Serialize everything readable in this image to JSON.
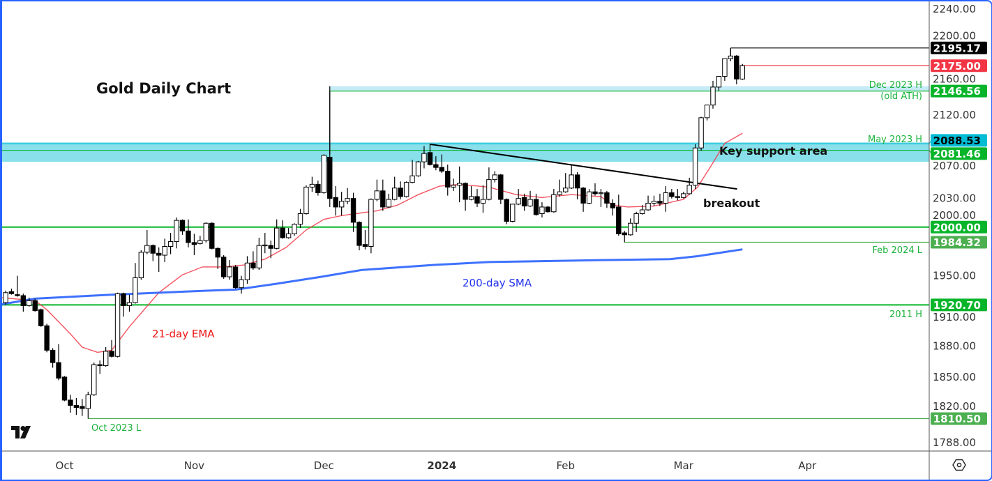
{
  "chart_data": {
    "type": "candlestick",
    "title": "Gold Daily Chart",
    "y_scale": "log",
    "ylim": [
      1788,
      2240
    ],
    "xlim_bars": [
      -1,
      156.7
    ],
    "grid": false,
    "y_ticks": [
      "2240.00",
      "2200.00",
      "2160.00",
      "2120.00",
      "2070.00",
      "2030.00",
      "2000.00",
      "1950.00",
      "1910.00",
      "1880.00",
      "1850.00",
      "1820.00",
      "1788.00"
    ],
    "x_ticks": [
      {
        "label": "Oct",
        "bar": 10
      },
      {
        "label": "Nov",
        "bar": 32
      },
      {
        "label": "Dec",
        "bar": 54
      },
      {
        "label": "2024",
        "bar": 74,
        "bold": true
      },
      {
        "label": "Feb",
        "bar": 95
      },
      {
        "label": "Mar",
        "bar": 115
      },
      {
        "label": "Apr",
        "bar": 136
      }
    ],
    "candles_ohlc": [
      [
        1923,
        1935,
        1921,
        1933
      ],
      [
        1934,
        1937,
        1931,
        1932
      ],
      [
        1931,
        1950,
        1929,
        1930
      ],
      [
        1930,
        1932,
        1914,
        1920
      ],
      [
        1920,
        1928,
        1919,
        1925
      ],
      [
        1925,
        1927,
        1914,
        1915
      ],
      [
        1916,
        1917,
        1899,
        1900
      ],
      [
        1900,
        1902,
        1874,
        1876
      ],
      [
        1876,
        1878,
        1859,
        1864
      ],
      [
        1864,
        1882,
        1847,
        1849
      ],
      [
        1850,
        1851,
        1827,
        1828
      ],
      [
        1828,
        1833,
        1816,
        1823
      ],
      [
        1823,
        1830,
        1814,
        1821
      ],
      [
        1822,
        1829,
        1813,
        1820
      ],
      [
        1820,
        1836,
        1810.5,
        1833
      ],
      [
        1833,
        1864,
        1832,
        1862
      ],
      [
        1862,
        1866,
        1853,
        1861
      ],
      [
        1861,
        1879,
        1860,
        1875
      ],
      [
        1875,
        1886,
        1869,
        1870
      ],
      [
        1870,
        1933,
        1869,
        1932
      ],
      [
        1932,
        1933,
        1909,
        1920
      ],
      [
        1920,
        1931,
        1914,
        1923
      ],
      [
        1923,
        1963,
        1922,
        1948
      ],
      [
        1948,
        1976,
        1946,
        1974
      ],
      [
        1974,
        1997,
        1972,
        1981
      ],
      [
        1981,
        1982,
        1965,
        1973
      ],
      [
        1973,
        1979,
        1954,
        1971
      ],
      [
        1971,
        1988,
        1964,
        1980
      ],
      [
        1980,
        1994,
        1972,
        1985
      ],
      [
        1985,
        2010,
        1978,
        2007
      ],
      [
        2007,
        2008,
        1992,
        1996
      ],
      [
        1996,
        2008,
        1979,
        1984
      ],
      [
        1984,
        1993,
        1971,
        1982
      ],
      [
        1983,
        1991,
        1982,
        1986
      ],
      [
        1986,
        2005,
        1984,
        2004
      ],
      [
        2004,
        2005,
        1977,
        1978
      ],
      [
        1978,
        1979,
        1957,
        1969
      ],
      [
        1969,
        1971,
        1947,
        1949
      ],
      [
        1949,
        1966,
        1946,
        1959
      ],
      [
        1959,
        1961,
        1937,
        1938
      ],
      [
        1938,
        1950,
        1932,
        1946
      ],
      [
        1946,
        1970,
        1942,
        1963
      ],
      [
        1963,
        1975,
        1956,
        1958
      ],
      [
        1958,
        1989,
        1956,
        1981
      ],
      [
        1981,
        1994,
        1973,
        1981.5
      ],
      [
        1981,
        1986,
        1968,
        1978
      ],
      [
        1978,
        2008,
        1977,
        1999
      ],
      [
        1999,
        2007,
        1988,
        1989
      ],
      [
        1989,
        1999,
        1988,
        1993
      ],
      [
        1993,
        2004,
        1991,
        2003
      ],
      [
        2003,
        2019,
        1999,
        2014
      ],
      [
        2014,
        2044,
        2013,
        2042
      ],
      [
        2042,
        2053,
        2037,
        2045
      ],
      [
        2045,
        2049,
        2033,
        2036
      ],
      [
        2036,
        2077,
        2035,
        2076
      ],
      [
        2074,
        2146.56,
        2021,
        2030
      ],
      [
        2031,
        2043,
        2012,
        2021
      ],
      [
        2021,
        2037,
        2012,
        2027
      ],
      [
        2027,
        2041,
        2024,
        2030
      ],
      [
        2030,
        2036,
        1995,
        2005
      ],
      [
        2005,
        2006,
        1976,
        1981
      ],
      [
        1982,
        1997,
        1977,
        1980
      ],
      [
        1980,
        2030,
        1973,
        2029
      ],
      [
        2029,
        2050,
        2027,
        2038
      ],
      [
        2038,
        2050,
        2017,
        2021
      ],
      [
        2021,
        2035,
        2020,
        2029
      ],
      [
        2029,
        2053,
        2028,
        2041
      ],
      [
        2041,
        2048,
        2029,
        2032
      ],
      [
        2032,
        2048,
        2031,
        2047
      ],
      [
        2047,
        2071,
        2046,
        2054
      ],
      [
        2054,
        2070,
        2053,
        2069
      ],
      [
        2069,
        2086,
        2062,
        2078
      ],
      [
        2079,
        2088.53,
        2065,
        2066
      ],
      [
        2066,
        2075,
        2060,
        2063
      ],
      [
        2063,
        2077,
        2057,
        2059
      ],
      [
        2059,
        2066,
        2033,
        2042
      ],
      [
        2042,
        2051,
        2038,
        2044
      ],
      [
        2044,
        2064,
        2026,
        2046
      ],
      [
        2046,
        2047,
        2017,
        2029
      ],
      [
        2029,
        2043,
        2028,
        2032
      ],
      [
        2032,
        2040,
        2021,
        2025
      ],
      [
        2025,
        2044,
        2015,
        2029
      ],
      [
        2029,
        2063,
        2028,
        2050
      ],
      [
        2050,
        2059,
        2047,
        2055
      ],
      [
        2055,
        2056,
        2024,
        2029
      ],
      [
        2029,
        2030,
        2003,
        2006
      ],
      [
        2006,
        2024,
        2005,
        2024
      ],
      [
        2024,
        2040,
        2023,
        2030
      ],
      [
        2031,
        2035,
        2017,
        2022
      ],
      [
        2022,
        2038,
        2021,
        2029
      ],
      [
        2029,
        2035,
        2012,
        2013
      ],
      [
        2014,
        2026,
        2010,
        2021
      ],
      [
        2021,
        2022,
        2015,
        2016
      ],
      [
        2016,
        2040,
        2015,
        2034
      ],
      [
        2034,
        2050,
        2032,
        2037
      ],
      [
        2037,
        2057,
        2036,
        2041
      ],
      [
        2041,
        2066,
        2040,
        2055
      ],
      [
        2055,
        2058,
        2029,
        2041
      ],
      [
        2041,
        2042,
        2016,
        2025
      ],
      [
        2025,
        2040,
        2024,
        2037
      ],
      [
        2037,
        2046,
        2033,
        2035
      ],
      [
        2036,
        2040,
        2021,
        2036
      ],
      [
        2036,
        2038,
        2020,
        2025
      ],
      [
        2025,
        2029,
        2012,
        2020
      ],
      [
        2021,
        2034,
        1991,
        1993
      ],
      [
        1994,
        1996,
        1984.32,
        1992
      ],
      [
        1992,
        2009,
        1991,
        2004
      ],
      [
        2004,
        2016,
        1995,
        2014
      ],
      [
        2014,
        2023,
        2013,
        2018
      ],
      [
        2018,
        2033,
        2017,
        2025
      ],
      [
        2025,
        2033,
        2022,
        2027
      ],
      [
        2027,
        2035,
        2022,
        2025
      ],
      [
        2025,
        2043,
        2016,
        2036
      ],
      [
        2036,
        2040,
        2030,
        2032
      ],
      [
        2032,
        2040,
        2028,
        2031
      ],
      [
        2031,
        2037,
        2030,
        2035
      ],
      [
        2035,
        2052,
        2034,
        2044
      ],
      [
        2044,
        2088,
        2040,
        2084
      ],
      [
        2084,
        2118,
        2081,
        2117
      ],
      [
        2117,
        2131,
        2114,
        2131
      ],
      [
        2131,
        2158,
        2127,
        2151
      ],
      [
        2151,
        2163,
        2147,
        2163
      ],
      [
        2163,
        2183,
        2158,
        2183
      ],
      [
        2183,
        2195.17,
        2180,
        2186
      ],
      [
        2186,
        2187,
        2154,
        2160
      ],
      [
        2160,
        2177,
        2159,
        2175
      ]
    ],
    "series": [
      {
        "name": "21-day EMA",
        "color": "#f23645",
        "points": [
          [
            -1,
            1928
          ],
          [
            5,
            1925
          ],
          [
            7,
            1916
          ],
          [
            11,
            1892
          ],
          [
            13,
            1879
          ],
          [
            15.6,
            1874
          ],
          [
            18,
            1876
          ],
          [
            21,
            1899
          ],
          [
            26,
            1933
          ],
          [
            30,
            1951
          ],
          [
            33.4,
            1959
          ],
          [
            37,
            1959
          ],
          [
            40.5,
            1961
          ],
          [
            44,
            1967
          ],
          [
            47.6,
            1979
          ],
          [
            51,
            1997
          ],
          [
            54,
            2008
          ],
          [
            57,
            2012
          ],
          [
            59.4,
            2014
          ],
          [
            63,
            2017
          ],
          [
            66.5,
            2023
          ],
          [
            70,
            2034
          ],
          [
            73.6,
            2043
          ],
          [
            77,
            2045
          ],
          [
            82,
            2042
          ],
          [
            86.6,
            2034
          ],
          [
            91,
            2031
          ],
          [
            96,
            2034
          ],
          [
            101,
            2032
          ],
          [
            103,
            2023
          ],
          [
            105.6,
            2021
          ],
          [
            110,
            2022
          ],
          [
            115,
            2029
          ],
          [
            117.4,
            2042
          ],
          [
            119.8,
            2066
          ],
          [
            122,
            2089
          ],
          [
            125,
            2100
          ]
        ]
      },
      {
        "name": "200-day SMA",
        "color": "#2962ff",
        "points": [
          [
            -1,
            1921
          ],
          [
            5,
            1927
          ],
          [
            18,
            1931
          ],
          [
            34.5,
            1935
          ],
          [
            39,
            1936
          ],
          [
            46,
            1942
          ],
          [
            53.5,
            1949
          ],
          [
            60.5,
            1956
          ],
          [
            72.5,
            1961
          ],
          [
            82,
            1964
          ],
          [
            101,
            1966
          ],
          [
            112.7,
            1967
          ],
          [
            117.4,
            1970
          ],
          [
            125,
            1977
          ]
        ]
      }
    ],
    "trendline": {
      "from": [
        72,
        2088
      ],
      "to": [
        124.1,
        2040
      ],
      "color": "#000000"
    },
    "zones": [
      {
        "from_bar": 55,
        "low": 2146.56,
        "high": 2152,
        "color": "#c6ebf7"
      },
      {
        "from_bar": -1,
        "low": 2069,
        "high": 2090,
        "color": "#89e0ea"
      }
    ],
    "levels": [
      {
        "price": 2195.17,
        "label": "2195.17",
        "color": "#000000",
        "text_color": "#ffffff",
        "from_bar": 123
      },
      {
        "price": 2175.0,
        "label": "2175.00",
        "color": "#f23645",
        "text_color": "#ffffff",
        "from_bar": 124.5
      },
      {
        "price": 2146.56,
        "label": "2146.56",
        "color": "#08b52a",
        "text_color": "#ffffff",
        "from_bar": 55
      },
      {
        "price": 2088.53,
        "label": "2088.53",
        "color": "#00bcd4",
        "text_color": "#000000",
        "from_bar": -1
      },
      {
        "price": 2081.46,
        "label": "2081.46",
        "color": "#08b52a",
        "text_color": "#ffffff",
        "from_bar": -1
      },
      {
        "price": 2000.0,
        "label": "2000.00",
        "color": "#08b52a",
        "text_color": "#ffffff",
        "from_bar": -1
      },
      {
        "price": 1984.32,
        "label": "1984.32",
        "color": "#4caf50",
        "text_color": "#ffffff",
        "from_bar": 105
      },
      {
        "price": 1920.7,
        "label": "1920.70",
        "color": "#08b52a",
        "text_color": "#ffffff",
        "from_bar": -1
      },
      {
        "price": 1810.5,
        "label": "1810.50",
        "color": "#4caf50",
        "text_color": "#ffffff",
        "from_bar": 14
      }
    ],
    "annotations": {
      "dec_high": "Dec 2023 H",
      "old_ath": "(old ATH)",
      "may_high": "May 2023 H",
      "feb_low": "Feb 2024 L",
      "h2011": "2011 H",
      "oct_low": "Oct 2023 L",
      "key_support": "Key support area",
      "breakout": "breakout",
      "sma_label": "200-day SMA",
      "ema_label": "21-day EMA"
    },
    "colors": {
      "up_body": "#ffffff",
      "down_body": "#000000",
      "wick": "#000000",
      "support_green": "#08b52a"
    }
  },
  "icons": {
    "logo": "tradingview-logo",
    "settings": "settings-hexagon-icon"
  }
}
